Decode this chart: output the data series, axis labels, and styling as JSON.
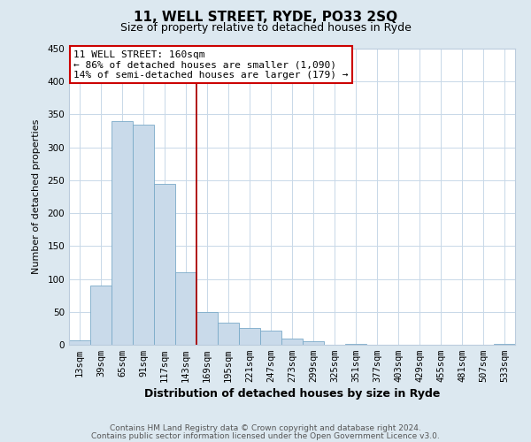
{
  "title1": "11, WELL STREET, RYDE, PO33 2SQ",
  "title2": "Size of property relative to detached houses in Ryde",
  "xlabel": "Distribution of detached houses by size in Ryde",
  "ylabel": "Number of detached properties",
  "bar_labels": [
    "13sqm",
    "39sqm",
    "65sqm",
    "91sqm",
    "117sqm",
    "143sqm",
    "169sqm",
    "195sqm",
    "221sqm",
    "247sqm",
    "273sqm",
    "299sqm",
    "325sqm",
    "351sqm",
    "377sqm",
    "403sqm",
    "429sqm",
    "455sqm",
    "481sqm",
    "507sqm",
    "533sqm"
  ],
  "bar_values": [
    7,
    90,
    340,
    335,
    245,
    110,
    50,
    33,
    26,
    22,
    10,
    5,
    0,
    2,
    0,
    0,
    0,
    0,
    0,
    0,
    1
  ],
  "bar_color": "#c9daea",
  "bar_edge_color": "#7aaac8",
  "vline_color": "#aa0000",
  "annotation_title": "11 WELL STREET: 160sqm",
  "annotation_line1": "← 86% of detached houses are smaller (1,090)",
  "annotation_line2": "14% of semi-detached houses are larger (179) →",
  "annotation_box_facecolor": "#ffffff",
  "annotation_box_edgecolor": "#cc0000",
  "ylim": [
    0,
    450
  ],
  "yticks": [
    0,
    50,
    100,
    150,
    200,
    250,
    300,
    350,
    400,
    450
  ],
  "grid_color": "#c8d8e8",
  "figure_facecolor": "#dce8f0",
  "axes_facecolor": "#ffffff",
  "footer1": "Contains HM Land Registry data © Crown copyright and database right 2024.",
  "footer2": "Contains public sector information licensed under the Open Government Licence v3.0.",
  "title1_fontsize": 11,
  "title2_fontsize": 9,
  "xlabel_fontsize": 9,
  "ylabel_fontsize": 8,
  "tick_fontsize": 7.5,
  "footer_fontsize": 6.5
}
